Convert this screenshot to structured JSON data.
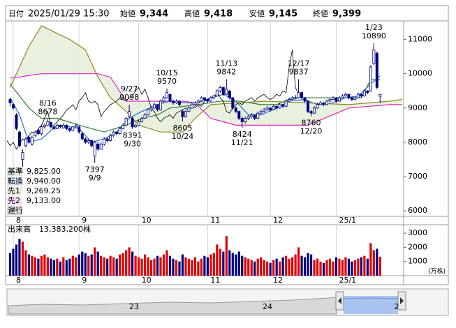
{
  "chart_data": {
    "type": "candlestick",
    "header": [
      {
        "label": "日付",
        "value": "2025/01/29 15:30"
      },
      {
        "label": "始値",
        "value": "9,344"
      },
      {
        "label": "高値",
        "value": "9,418",
        "color": "#e00000"
      },
      {
        "label": "安値",
        "value": "9,145",
        "color": "#008000"
      },
      {
        "label": "終値",
        "value": "9,399"
      }
    ],
    "xlim": [
      -1,
      125.5
    ],
    "xticks": [
      {
        "value": 1,
        "label": "8"
      },
      {
        "value": 22,
        "label": "9"
      },
      {
        "value": 41,
        "label": "10"
      },
      {
        "value": 63,
        "label": "11"
      },
      {
        "value": 83,
        "label": "12"
      },
      {
        "value": 104,
        "label": "25/1"
      }
    ],
    "xgrid": true,
    "ylim": [
      5840,
      11500
    ],
    "yticks": [
      6000,
      7000,
      8000,
      9000,
      10000,
      11000
    ],
    "up_color": "#ffffff",
    "down_color": "#000080",
    "candles": [
      [
        9250,
        9300,
        9050,
        9150
      ],
      [
        9100,
        9150,
        8950,
        9000
      ],
      [
        8800,
        8850,
        8350,
        8400
      ],
      [
        8300,
        8350,
        7850,
        7900
      ],
      [
        7500,
        7800,
        7250,
        7700
      ],
      [
        7900,
        8150,
        7850,
        8100
      ],
      [
        8150,
        8200,
        7950,
        8000
      ],
      [
        7950,
        8200,
        7900,
        8150
      ],
      [
        8200,
        8350,
        8150,
        8300
      ],
      [
        8350,
        8400,
        8200,
        8250
      ],
      [
        8250,
        8500,
        8200,
        8450
      ],
      [
        8450,
        8550,
        8400,
        8500
      ],
      [
        8500,
        8678,
        8480,
        8600
      ],
      [
        8580,
        8600,
        8400,
        8450
      ],
      [
        8450,
        8480,
        8350,
        8400
      ],
      [
        8400,
        8550,
        8380,
        8500
      ],
      [
        8500,
        8520,
        8400,
        8450
      ],
      [
        8420,
        8560,
        8400,
        8500
      ],
      [
        8500,
        8520,
        8350,
        8400
      ],
      [
        8400,
        8430,
        8300,
        8350
      ],
      [
        8350,
        8480,
        8320,
        8450
      ],
      [
        8450,
        8560,
        8420,
        8500
      ],
      [
        8450,
        8480,
        8250,
        8300
      ],
      [
        8250,
        8300,
        8050,
        8100
      ],
      [
        8100,
        8150,
        7950,
        8000
      ],
      [
        8000,
        8100,
        7950,
        8050
      ],
      [
        8050,
        8080,
        7850,
        7900
      ],
      [
        7600,
        8050,
        7397,
        8000
      ],
      [
        7950,
        8000,
        7750,
        7800
      ],
      [
        7800,
        8000,
        7780,
        7950
      ],
      [
        7950,
        8150,
        7900,
        8100
      ],
      [
        8100,
        8150,
        8000,
        8050
      ],
      [
        8050,
        8250,
        8020,
        8200
      ],
      [
        8200,
        8350,
        8150,
        8300
      ],
      [
        8300,
        8320,
        8200,
        8250
      ],
      [
        8250,
        8450,
        8230,
        8400
      ],
      [
        8400,
        8550,
        8380,
        8500
      ],
      [
        8500,
        8750,
        8480,
        8700
      ],
      [
        8750,
        9098,
        8700,
        8900
      ],
      [
        8700,
        8750,
        8391,
        8450
      ],
      [
        8450,
        8550,
        8420,
        8500
      ],
      [
        8500,
        8650,
        8480,
        8600
      ],
      [
        8600,
        8750,
        8580,
        8700
      ],
      [
        8700,
        8850,
        8680,
        8800
      ],
      [
        8800,
        8980,
        8780,
        8950
      ],
      [
        8950,
        9050,
        8900,
        9000
      ],
      [
        9000,
        9150,
        8980,
        9100
      ],
      [
        9100,
        9120,
        8900,
        8950
      ],
      [
        8950,
        9250,
        8930,
        9200
      ],
      [
        9200,
        9350,
        9150,
        9300
      ],
      [
        9300,
        9570,
        9280,
        9450
      ],
      [
        9400,
        9420,
        9150,
        9200
      ],
      [
        9200,
        9250,
        9100,
        9150
      ],
      [
        9150,
        9250,
        9120,
        9200
      ],
      [
        9200,
        9220,
        9050,
        9100
      ],
      [
        8900,
        8950,
        8605,
        8750
      ],
      [
        8750,
        8950,
        8720,
        8900
      ],
      [
        8900,
        9050,
        8880,
        9000
      ],
      [
        9000,
        9150,
        8980,
        9100
      ],
      [
        9100,
        9200,
        9050,
        9150
      ],
      [
        9150,
        9250,
        9120,
        9200
      ],
      [
        9200,
        9350,
        9180,
        9300
      ],
      [
        9300,
        9320,
        9200,
        9250
      ],
      [
        9250,
        9280,
        9150,
        9200
      ],
      [
        9200,
        9350,
        9180,
        9300
      ],
      [
        9300,
        9400,
        9250,
        9350
      ],
      [
        9350,
        9550,
        9330,
        9500
      ],
      [
        9500,
        9650,
        9450,
        9600
      ],
      [
        9600,
        9620,
        9350,
        9400
      ],
      [
        9400,
        9842,
        9380,
        9550
      ],
      [
        9500,
        9520,
        9250,
        9300
      ],
      [
        9300,
        9320,
        8950,
        9000
      ],
      [
        9000,
        9050,
        8850,
        8900
      ],
      [
        8900,
        8920,
        8650,
        8700
      ],
      [
        8700,
        8750,
        8424,
        8600
      ],
      [
        8600,
        8750,
        8550,
        8700
      ],
      [
        8700,
        8800,
        8650,
        8750
      ],
      [
        8750,
        8850,
        8700,
        8800
      ],
      [
        8800,
        8820,
        8650,
        8700
      ],
      [
        8700,
        8900,
        8680,
        8850
      ],
      [
        8850,
        8950,
        8820,
        8900
      ],
      [
        8900,
        9000,
        8870,
        8950
      ],
      [
        8950,
        9050,
        8920,
        9000
      ],
      [
        9000,
        9020,
        8900,
        8950
      ],
      [
        8950,
        9100,
        8930,
        9050
      ],
      [
        9050,
        9080,
        8950,
        9000
      ],
      [
        9000,
        9150,
        8980,
        9100
      ],
      [
        9100,
        9120,
        9000,
        9050
      ],
      [
        9050,
        9250,
        9030,
        9200
      ],
      [
        9200,
        9300,
        9180,
        9250
      ],
      [
        9250,
        9350,
        9230,
        9300
      ],
      [
        9300,
        9380,
        9250,
        9300
      ],
      [
        9300,
        9837,
        9280,
        9450
      ],
      [
        9450,
        9480,
        9250,
        9300
      ],
      [
        9300,
        9320,
        9150,
        9200
      ],
      [
        9200,
        9220,
        8850,
        8900
      ],
      [
        8900,
        8950,
        8760,
        8850
      ],
      [
        8850,
        9050,
        8830,
        9000
      ],
      [
        9000,
        9150,
        8980,
        9100
      ],
      [
        9100,
        9200,
        9080,
        9150
      ],
      [
        9150,
        9180,
        9050,
        9100
      ],
      [
        9100,
        9250,
        9080,
        9200
      ],
      [
        9200,
        9300,
        9180,
        9250
      ],
      [
        9250,
        9350,
        9230,
        9300
      ],
      [
        9300,
        9320,
        9150,
        9200
      ],
      [
        9200,
        9350,
        9180,
        9300
      ],
      [
        9300,
        9400,
        9280,
        9350
      ],
      [
        9350,
        9450,
        9330,
        9400
      ],
      [
        9400,
        9420,
        9250,
        9300
      ],
      [
        9300,
        9320,
        9200,
        9250
      ],
      [
        9250,
        9350,
        9230,
        9300
      ],
      [
        9300,
        9450,
        9280,
        9400
      ],
      [
        9400,
        9420,
        9300,
        9350
      ],
      [
        9350,
        9550,
        9330,
        9500
      ],
      [
        9500,
        9520,
        9400,
        9450
      ],
      [
        9500,
        10250,
        9480,
        10200
      ],
      [
        10300,
        10890,
        10250,
        10700
      ],
      [
        10600,
        10650,
        9550,
        9600
      ],
      [
        9344,
        9418,
        9145,
        9399
      ]
    ],
    "annotations": [
      {
        "date": "8/16",
        "value": 8678,
        "at": "high"
      },
      {
        "date": "9/9",
        "value": 7397,
        "at": "low"
      },
      {
        "date": "9/27",
        "value": 9098,
        "at": "high"
      },
      {
        "date": "9/30",
        "value": 8391,
        "at": "low"
      },
      {
        "date": "10/15",
        "value": 9570,
        "at": "high"
      },
      {
        "date": "10/24",
        "value": 8605,
        "at": "low"
      },
      {
        "date": "11/13",
        "value": 9842,
        "at": "high"
      },
      {
        "date": "11/21",
        "value": 8424,
        "at": "low"
      },
      {
        "date": "12/17",
        "value": 9837,
        "at": "high"
      },
      {
        "date": "12/20",
        "value": 8760,
        "at": "low"
      },
      {
        "date": "1/23",
        "value": 10890,
        "at": "high"
      }
    ],
    "lines": [
      {
        "name": "基準",
        "color": "#2e7d32",
        "current": "9,825.00",
        "x": [
          0,
          6,
          10,
          15,
          22,
          30,
          37,
          42,
          47,
          51,
          60,
          67,
          73,
          80,
          85,
          90,
          94,
          100,
          107,
          112,
          115,
          118
        ],
        "values": [
          9700,
          9000,
          8700,
          8700,
          8500,
          8300,
          8500,
          8700,
          8800,
          9000,
          9100,
          9200,
          9200,
          9100,
          9100,
          9300,
          9300,
          9300,
          9300,
          9300,
          9825,
          9825
        ]
      },
      {
        "name": "転換",
        "color": "#1e6fd0",
        "current": "9,940.00",
        "x": [
          0,
          3,
          6,
          10,
          15,
          19,
          22,
          26,
          30,
          34,
          38,
          42,
          47,
          51,
          56,
          60,
          64,
          68,
          72,
          76,
          80,
          85,
          89,
          94,
          98,
          103,
          107,
          111,
          115,
          118
        ],
        "values": [
          9300,
          8800,
          8000,
          8100,
          8500,
          8450,
          8400,
          8000,
          8100,
          8300,
          8700,
          8900,
          9100,
          9200,
          9150,
          9150,
          9300,
          9400,
          9200,
          8800,
          8800,
          9000,
          9200,
          9250,
          9100,
          9150,
          9300,
          9350,
          9700,
          9940
        ]
      },
      {
        "name": "先1",
        "color": "#8a8a20",
        "current": "9,269.25",
        "cloud": true,
        "x": [
          0,
          3,
          6,
          10,
          19,
          24,
          28,
          32,
          37,
          41,
          48,
          55,
          59,
          64,
          72,
          81,
          95,
          108,
          121,
          125
        ],
        "values": [
          9600,
          10200,
          10800,
          11400,
          11000,
          10700,
          9900,
          9300,
          8900,
          8500,
          8300,
          8300,
          8700,
          9100,
          9150,
          9200,
          9150,
          9100,
          9200,
          9250
        ]
      },
      {
        "name": "先2",
        "color": "#e020c0",
        "current": "9,133.00",
        "cloud": true,
        "x": [
          0,
          3,
          6,
          10,
          19,
          24,
          28,
          32,
          37,
          41,
          48,
          55,
          59,
          64,
          72,
          81,
          95,
          108,
          121,
          125
        ],
        "values": [
          9900,
          9900,
          9950,
          10000,
          10000,
          10000,
          10000,
          9900,
          9200,
          9200,
          9200,
          9200,
          9150,
          8700,
          8500,
          8500,
          8500,
          9000,
          9100,
          9100
        ]
      },
      {
        "name": "遅行",
        "color": "#000000",
        "shift": -26
      }
    ],
    "cloud_color": "#e4ecd4",
    "volume": {
      "label": "出来高",
      "total": "13,383,200株",
      "unit": "(万株)",
      "up_color": "#e00000",
      "down_color": "#000080",
      "ylim": [
        0,
        3600
      ],
      "yticks": [
        1000,
        2000,
        3000
      ],
      "values": [
        1600,
        1900,
        2200,
        2600,
        2400,
        1800,
        1500,
        1400,
        1300,
        1200,
        1400,
        1500,
        1300,
        1200,
        1100,
        1200,
        1000,
        1300,
        1100,
        1200,
        1400,
        1300,
        1500,
        1700,
        1600,
        1400,
        1500,
        2000,
        1700,
        1400,
        1300,
        1200,
        1400,
        1300,
        1200,
        1500,
        1600,
        1800,
        2000,
        1700,
        1400,
        1300,
        1200,
        1500,
        1300,
        1100,
        1200,
        1400,
        1300,
        1500,
        1800,
        1400,
        1200,
        1100,
        1000,
        1500,
        1300,
        1200,
        1100,
        1300,
        1000,
        1200,
        1400,
        1300,
        1500,
        1600,
        2200,
        1900,
        1700,
        2800,
        1800,
        1600,
        1500,
        1700,
        1400,
        1300,
        1200,
        1100,
        1000,
        1200,
        1300,
        1100,
        1000,
        900,
        1100,
        1200,
        1000,
        1300,
        1400,
        1200,
        1300,
        1500,
        2000,
        1400,
        1300,
        1600,
        1500,
        1100,
        1200,
        1000,
        900,
        1100,
        1200,
        1000,
        1300,
        1200,
        1100,
        1300,
        1200,
        1000,
        1100,
        1200,
        1300,
        1400,
        1200,
        2300,
        1800,
        1900,
        1338
      ]
    },
    "navigator": {
      "labels": [
        "23",
        "24",
        "2"
      ]
    }
  }
}
